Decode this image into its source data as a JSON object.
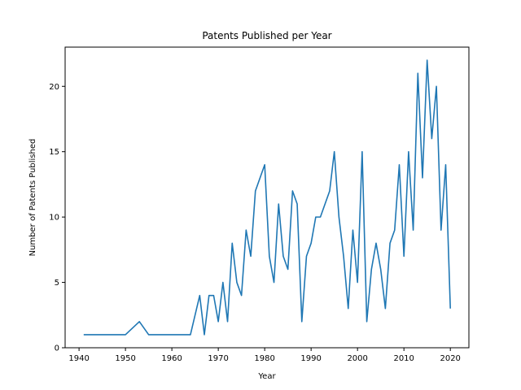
{
  "chart_data": {
    "type": "line",
    "title": "Patents Published per Year",
    "xlabel": "Year",
    "ylabel": "Number of Patents Published",
    "xlim": [
      1937,
      2024
    ],
    "ylim": [
      0,
      23
    ],
    "xticks": [
      1940,
      1950,
      1960,
      1970,
      1980,
      1990,
      2000,
      2010,
      2020
    ],
    "yticks": [
      0,
      5,
      10,
      15,
      20
    ],
    "grid": false,
    "line_color": "#1f77b4",
    "series": [
      {
        "x": [
          1941,
          1950,
          1953,
          1955,
          1964,
          1966,
          1967,
          1968,
          1969,
          1970,
          1971,
          1972,
          1973,
          1974,
          1975,
          1976,
          1977,
          1978,
          1980,
          1981,
          1982,
          1983,
          1984,
          1985,
          1986,
          1987,
          1988,
          1989,
          1990,
          1991,
          1992,
          1994,
          1995,
          1996,
          1997,
          1998,
          1999,
          2000,
          2001,
          2002,
          2003,
          2004,
          2005,
          2006,
          2007,
          2008,
          2009,
          2010,
          2011,
          2012,
          2013,
          2014,
          2015,
          2016,
          2017,
          2018,
          2019,
          2020
        ],
        "y": [
          1,
          1,
          2,
          1,
          1,
          4,
          1,
          4,
          4,
          2,
          5,
          2,
          8,
          5,
          4,
          9,
          7,
          12,
          14,
          7,
          5,
          11,
          7,
          6,
          12,
          11,
          2,
          7,
          8,
          10,
          10,
          12,
          15,
          10,
          7,
          3,
          9,
          5,
          15,
          2,
          6,
          8,
          6,
          3,
          8,
          9,
          14,
          7,
          15,
          9,
          21,
          13,
          22,
          16,
          20,
          9,
          14,
          3
        ]
      }
    ]
  }
}
